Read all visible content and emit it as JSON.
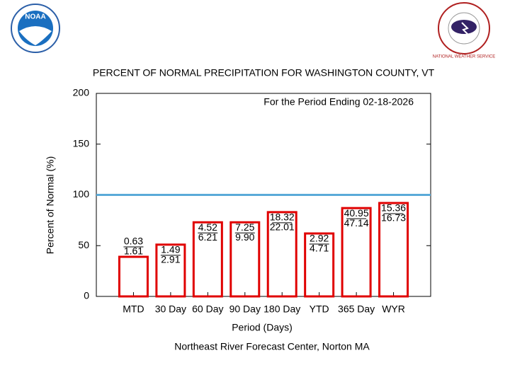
{
  "logos": {
    "noaa": "NOAA",
    "nws": "NATIONAL WEATHER SERVICE"
  },
  "chart_data": {
    "type": "bar",
    "title": "PERCENT OF NORMAL PRECIPITATION FOR WASHINGTON COUNTY, VT",
    "annotation": "For the Period Ending 02-18-2026",
    "x_label": "Period (Days)",
    "y_label": "Percent of Normal (%)",
    "footer": "Northeast River Forecast Center, Norton MA",
    "categories": [
      "MTD",
      "30 Day",
      "60 Day",
      "90 Day",
      "180 Day",
      "YTD",
      "365 Day",
      "WYR"
    ],
    "values": [
      39,
      51,
      73,
      73,
      83,
      62,
      87,
      92
    ],
    "observed_labels": [
      "0.63",
      "1.49",
      "4.52",
      "7.25",
      "18.32",
      "2.92",
      "40.95",
      "15.36"
    ],
    "normal_labels": [
      "1.61",
      "2.91",
      "6.21",
      "9.90",
      "22.01",
      "4.71",
      "47.14",
      "16.73"
    ],
    "color": "#e00000",
    "reference_line": {
      "value": 100,
      "color": "#5aaad8"
    },
    "ylim": [
      0,
      200
    ],
    "yticks": [
      0,
      50,
      100,
      150,
      200
    ]
  }
}
